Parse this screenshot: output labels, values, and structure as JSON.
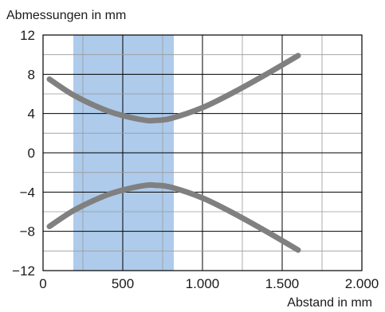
{
  "chart_data": {
    "type": "line",
    "ylabel": "Abmessungen in mm",
    "xlabel": "Abstand in mm",
    "xlim": [
      0,
      2000
    ],
    "ylim": [
      -12,
      12
    ],
    "x_ticks": [
      0,
      500,
      1000,
      1500,
      2000
    ],
    "x_tick_labels": [
      "0",
      "500",
      "1.000",
      "1.500",
      "2.000"
    ],
    "y_ticks": [
      12,
      8,
      4,
      0,
      -4,
      -8,
      -12
    ],
    "y_tick_labels": [
      "12",
      "8",
      "4",
      "0",
      "−4",
      "−8",
      "−12"
    ],
    "grid": true,
    "shaded_range_x": [
      190,
      820
    ],
    "colors": {
      "curve": "#808080",
      "band": "#aecbeb",
      "grid": "#000000"
    },
    "series": [
      {
        "x": [
          40,
          200,
          400,
          550,
          650,
          700,
          800,
          1000,
          1200,
          1400,
          1600
        ],
        "y": [
          7.5,
          5.8,
          4.3,
          3.6,
          3.3,
          3.3,
          3.5,
          4.6,
          6.2,
          8.0,
          9.9
        ]
      },
      {
        "x": [
          40,
          200,
          400,
          550,
          650,
          700,
          800,
          1000,
          1200,
          1400,
          1600
        ],
        "y": [
          -7.5,
          -5.8,
          -4.3,
          -3.6,
          -3.3,
          -3.3,
          -3.5,
          -4.6,
          -6.2,
          -8.0,
          -9.9
        ]
      }
    ]
  }
}
